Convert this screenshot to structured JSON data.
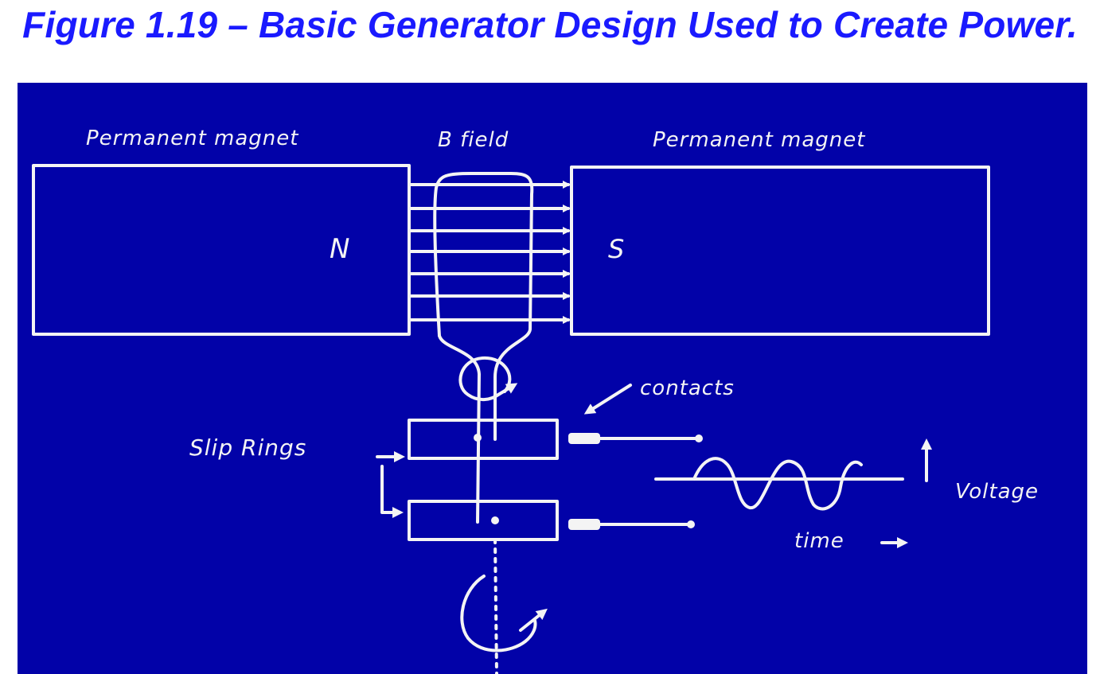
{
  "figure": {
    "title": "Figure 1.19 – Basic Generator Design Used to Create Power."
  },
  "diagram": {
    "labels": {
      "magnet_left": "Permanent magnet",
      "field": "B field",
      "magnet_right": "Permanent magnet",
      "north_pole": "N",
      "south_pole": "S",
      "contacts": "contacts",
      "slip_rings": "Slip Rings",
      "voltage": "Voltage",
      "time": "time"
    }
  },
  "colors": {
    "title": "#1a1aff",
    "board": "#0202a8",
    "chalk": "#f4f4f4"
  }
}
